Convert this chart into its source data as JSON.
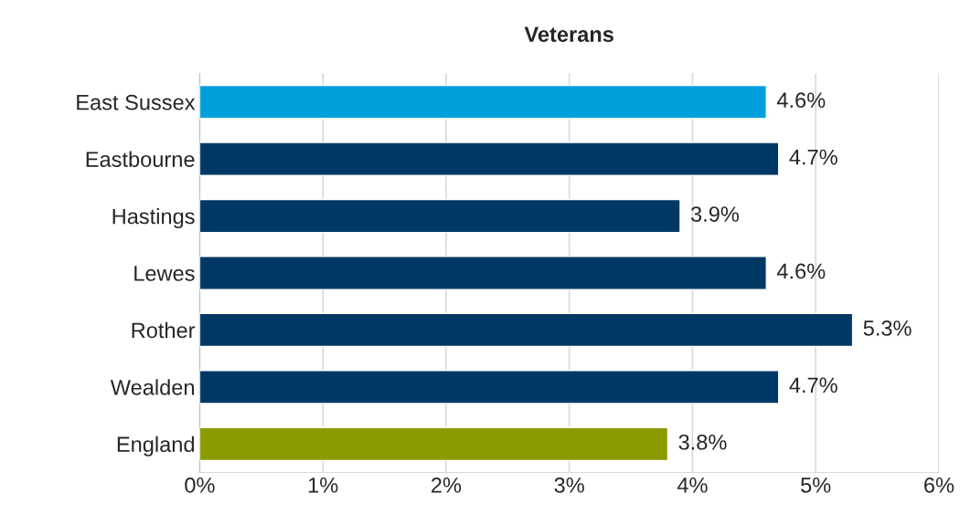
{
  "chart_data": {
    "type": "bar",
    "orientation": "horizontal",
    "title": "Veterans",
    "categories": [
      "East Sussex",
      "Eastbourne",
      "Hastings",
      "Lewes",
      "Rother",
      "Wealden",
      "England"
    ],
    "values": [
      4.6,
      4.7,
      3.9,
      4.6,
      5.3,
      4.7,
      3.8
    ],
    "value_labels": [
      "4.6%",
      "4.7%",
      "3.9%",
      "4.6%",
      "5.3%",
      "4.7%",
      "3.8%"
    ],
    "colors": [
      "#00a0dc",
      "#003865",
      "#003865",
      "#003865",
      "#003865",
      "#003865",
      "#8a9a00"
    ],
    "xlim": [
      0,
      6
    ],
    "xticks": [
      {
        "value": 0,
        "label": "0%"
      },
      {
        "value": 1,
        "label": "1%"
      },
      {
        "value": 2,
        "label": "2%"
      },
      {
        "value": 3,
        "label": "3%"
      },
      {
        "value": 4,
        "label": "4%"
      },
      {
        "value": 5,
        "label": "5%"
      },
      {
        "value": 6,
        "label": "6%"
      }
    ],
    "grid": "x",
    "legend": false
  }
}
